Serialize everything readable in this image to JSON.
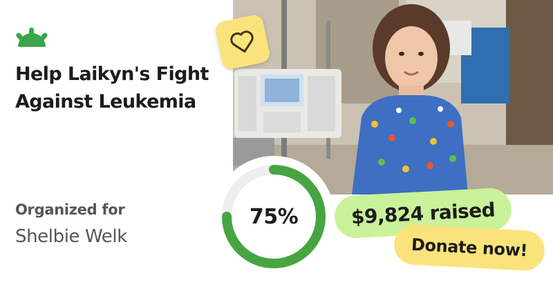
{
  "brand": {
    "logo_icon": "gofundme-sprout-logo-icon",
    "accent": "#02a95c"
  },
  "campaign": {
    "title": "Help Laikyn's Fight Against Leukemia",
    "organized_label": "Organized for",
    "beneficiary": "Shelbie Welk"
  },
  "photo": {
    "alt": "Campaign photo"
  },
  "heart_icon": "heart-icon",
  "progress": {
    "percent_text": "75%",
    "fraction": 0.75,
    "ring_color": "#46a540",
    "track_color": "#eeeeee"
  },
  "raised": {
    "label": "$9,824 raised",
    "color": "#c9f29a"
  },
  "donate": {
    "label": "Donate now!",
    "color": "#fbe37b"
  }
}
